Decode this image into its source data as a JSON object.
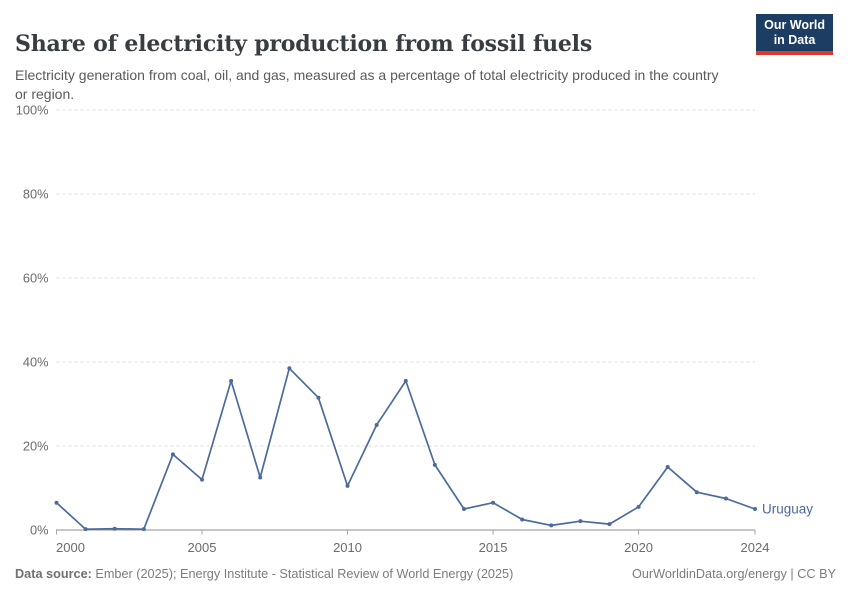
{
  "header": {
    "title": "Share of electricity production from fossil fuels",
    "subtitle": "Electricity generation from coal, oil, and gas, measured as a percentage of total electricity produced in the country or region."
  },
  "logo": {
    "line1": "Our World",
    "line2": "in Data",
    "bg_color": "#1d3d63",
    "accent_color": "#dc3a2d"
  },
  "chart_data": {
    "type": "line",
    "title": "Share of electricity production from fossil fuels",
    "xlabel": "",
    "ylabel": "",
    "xlim": [
      2000,
      2024
    ],
    "ylim": [
      0,
      100
    ],
    "grid": true,
    "x_ticks": [
      2000,
      2005,
      2010,
      2015,
      2020,
      2024
    ],
    "y_ticks": [
      0,
      20,
      40,
      60,
      80,
      100
    ],
    "y_tick_suffix": "%",
    "x": [
      2000,
      2001,
      2002,
      2003,
      2004,
      2005,
      2006,
      2007,
      2008,
      2009,
      2010,
      2011,
      2012,
      2013,
      2014,
      2015,
      2016,
      2017,
      2018,
      2019,
      2020,
      2021,
      2022,
      2023,
      2024
    ],
    "series": [
      {
        "name": "Uruguay",
        "color": "#4C6A9C",
        "values": [
          6.5,
          0.2,
          0.3,
          0.2,
          18,
          12,
          35.5,
          12.5,
          38.5,
          31.5,
          10.5,
          25,
          35.5,
          15.5,
          5,
          6.5,
          2.5,
          1.1,
          2.1,
          1.4,
          5.5,
          15,
          9,
          7.5,
          5
        ]
      }
    ],
    "end_label": "Uruguay",
    "legend_position": "end-of-line",
    "gridline_color": "#dcdcdc",
    "axis_color": "#8f8f8f",
    "tick_label_color": "#6b6b6b"
  },
  "footer": {
    "datasource_label": "Data source:",
    "datasource_text": " Ember (2025); Energy Institute - Statistical Review of World Energy (2025)",
    "credit": "OurWorldinData.org/energy | CC BY"
  }
}
